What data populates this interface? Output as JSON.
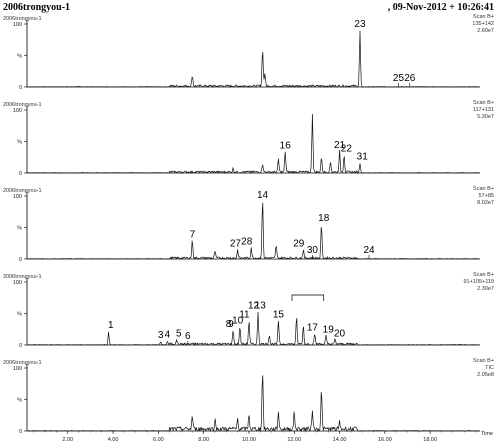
{
  "header": {
    "left": "2006trongyou-1",
    "right": ", 09-Nov-2012 + 10:26:41"
  },
  "chart_data": {
    "type": "line",
    "xlabel": "Time",
    "xlim": [
      0.2,
      20.2
    ],
    "x_ticks": [
      {
        "v": 2.0,
        "label": "2.00"
      },
      {
        "v": 4.0,
        "label": "4.00"
      },
      {
        "v": 6.0,
        "label": "6.00"
      },
      {
        "v": 8.0,
        "label": "8.00"
      },
      {
        "v": 10.0,
        "label": "10.00"
      },
      {
        "v": 12.0,
        "label": "12.00"
      },
      {
        "v": 14.0,
        "label": "14.00"
      },
      {
        "v": 16.0,
        "label": "16.00"
      },
      {
        "v": 18.0,
        "label": "18.00"
      }
    ],
    "panels": [
      {
        "name": "2006trongyou-1",
        "scan": "Scan B+",
        "ion": "135+142",
        "intensity": "2.60e7",
        "yticks": [
          "100",
          "%",
          "0"
        ],
        "peaks": [
          {
            "x": 7.5,
            "h": 18
          },
          {
            "x": 10.6,
            "h": 64
          },
          {
            "x": 10.7,
            "h": 22
          },
          {
            "x": 14.9,
            "h": 95
          }
        ],
        "labels": [
          {
            "text": "23",
            "x": 14.9
          },
          {
            "text": "25",
            "x": 16.6
          },
          {
            "text": "26",
            "x": 17.1
          }
        ]
      },
      {
        "name": "2006trongyou-1",
        "scan": "Scan B+",
        "ion": "117+131",
        "intensity": "5.30e7",
        "yticks": [
          "100",
          "%",
          "0"
        ],
        "peaks": [
          {
            "x": 9.3,
            "h": 6
          },
          {
            "x": 10.6,
            "h": 14
          },
          {
            "x": 11.3,
            "h": 22
          },
          {
            "x": 11.6,
            "h": 35
          },
          {
            "x": 12.8,
            "h": 100
          },
          {
            "x": 13.2,
            "h": 25
          },
          {
            "x": 13.6,
            "h": 18
          },
          {
            "x": 14.0,
            "h": 36
          },
          {
            "x": 14.2,
            "h": 30
          },
          {
            "x": 14.9,
            "h": 16
          }
        ],
        "labels": [
          {
            "text": "16",
            "x": 11.6
          },
          {
            "text": "21",
            "x": 14.0
          },
          {
            "text": "22",
            "x": 14.3
          },
          {
            "text": "31",
            "x": 15.0
          }
        ]
      },
      {
        "name": "2006trongyou-1",
        "scan": "Scan B+",
        "ion": "57+85",
        "intensity": "8.02e7",
        "yticks": [
          "100",
          "%",
          "0"
        ],
        "peaks": [
          {
            "x": 7.5,
            "h": 30
          },
          {
            "x": 8.5,
            "h": 12
          },
          {
            "x": 9.5,
            "h": 14
          },
          {
            "x": 10.1,
            "h": 18
          },
          {
            "x": 10.6,
            "h": 100
          },
          {
            "x": 11.2,
            "h": 22
          },
          {
            "x": 12.4,
            "h": 14
          },
          {
            "x": 13.2,
            "h": 58
          }
        ],
        "labels": [
          {
            "text": "7",
            "x": 7.5
          },
          {
            "text": "14",
            "x": 10.6
          },
          {
            "text": "18",
            "x": 13.3
          },
          {
            "text": "27",
            "x": 9.4
          },
          {
            "text": "28",
            "x": 9.9
          },
          {
            "text": "29",
            "x": 12.2
          },
          {
            "text": "30",
            "x": 12.8
          },
          {
            "text": "24",
            "x": 15.3
          }
        ]
      },
      {
        "name": "2006trongyou-1",
        "scan": "Scan B+",
        "ion": "91+105+119",
        "intensity": "2.30e7",
        "yticks": [
          "100",
          "%",
          "0"
        ],
        "peaks": [
          {
            "x": 3.8,
            "h": 22
          },
          {
            "x": 6.1,
            "h": 5
          },
          {
            "x": 6.4,
            "h": 6
          },
          {
            "x": 6.8,
            "h": 8
          },
          {
            "x": 9.3,
            "h": 24
          },
          {
            "x": 9.6,
            "h": 30
          },
          {
            "x": 10.0,
            "h": 40
          },
          {
            "x": 10.4,
            "h": 55
          },
          {
            "x": 10.9,
            "h": 16
          },
          {
            "x": 11.3,
            "h": 40
          },
          {
            "x": 12.1,
            "h": 46
          },
          {
            "x": 12.4,
            "h": 32
          },
          {
            "x": 12.9,
            "h": 18
          },
          {
            "x": 13.4,
            "h": 14
          },
          {
            "x": 13.8,
            "h": 8
          }
        ],
        "labels": [
          {
            "text": "1",
            "x": 3.9
          },
          {
            "text": "3",
            "x": 6.1
          },
          {
            "text": "4",
            "x": 6.4
          },
          {
            "text": "5",
            "x": 6.9
          },
          {
            "text": "6",
            "x": 7.3
          },
          {
            "text": "8",
            "x": 9.1
          },
          {
            "text": "9",
            "x": 9.2
          },
          {
            "text": "10",
            "x": 9.5
          },
          {
            "text": "11",
            "x": 9.8
          },
          {
            "text": "12",
            "x": 10.2
          },
          {
            "text": "13",
            "x": 10.5
          },
          {
            "text": "15",
            "x": 11.3
          },
          {
            "text": "17",
            "x": 12.8
          },
          {
            "text": "19",
            "x": 13.5
          },
          {
            "text": "20",
            "x": 14.0
          }
        ]
      },
      {
        "name": "2006trongyou-1",
        "scan": "Scan B+",
        "ion": "TIC",
        "intensity": "2.05e8",
        "yticks": [
          "100",
          "%",
          "0"
        ],
        "peaks": [
          {
            "x": 7.5,
            "h": 22
          },
          {
            "x": 8.5,
            "h": 16
          },
          {
            "x": 9.5,
            "h": 18
          },
          {
            "x": 10.0,
            "h": 24
          },
          {
            "x": 10.6,
            "h": 100
          },
          {
            "x": 11.3,
            "h": 30
          },
          {
            "x": 12.0,
            "h": 28
          },
          {
            "x": 12.8,
            "h": 34
          },
          {
            "x": 13.2,
            "h": 66
          },
          {
            "x": 14.0,
            "h": 12
          }
        ],
        "labels": []
      }
    ]
  }
}
